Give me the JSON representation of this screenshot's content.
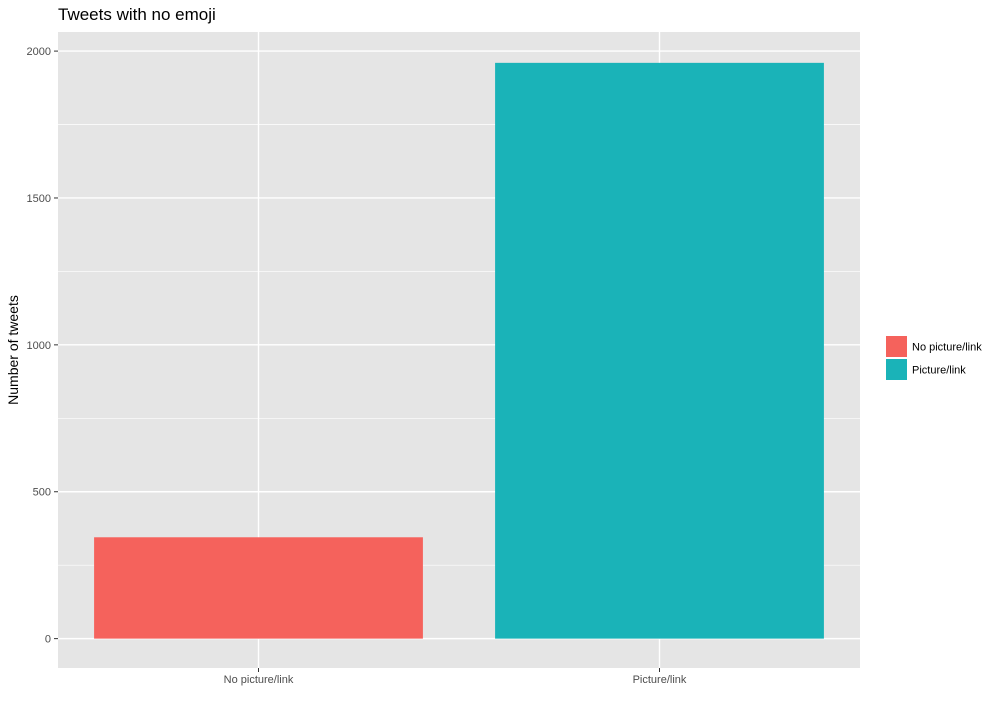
{
  "chart_data": {
    "type": "bar",
    "title": "Tweets with no emoji",
    "xlabel": "",
    "ylabel": "Number of tweets",
    "categories": [
      "No picture/link",
      "Picture/link"
    ],
    "values": [
      345,
      1960
    ],
    "colors": [
      "#F8766D",
      "#00BFC4"
    ],
    "display_colors": [
      "#F5625C",
      "#1AB3B8"
    ],
    "ylim": [
      -100,
      2065
    ],
    "y_ticks": [
      0,
      500,
      1000,
      1500,
      2000
    ],
    "y_tick_labels": [
      "0",
      "500",
      "1000",
      "1500",
      "2000"
    ],
    "y_minor_ticks": [
      250,
      750,
      1250,
      1750
    ],
    "grid": true,
    "panel_background": "#E5E5E5",
    "grid_color": "#FFFFFF",
    "legend": {
      "placement": "right",
      "entries": [
        {
          "label": "No picture/link",
          "color": "#F5625C"
        },
        {
          "label": "Picture/link",
          "color": "#1AB3B8"
        }
      ]
    }
  }
}
